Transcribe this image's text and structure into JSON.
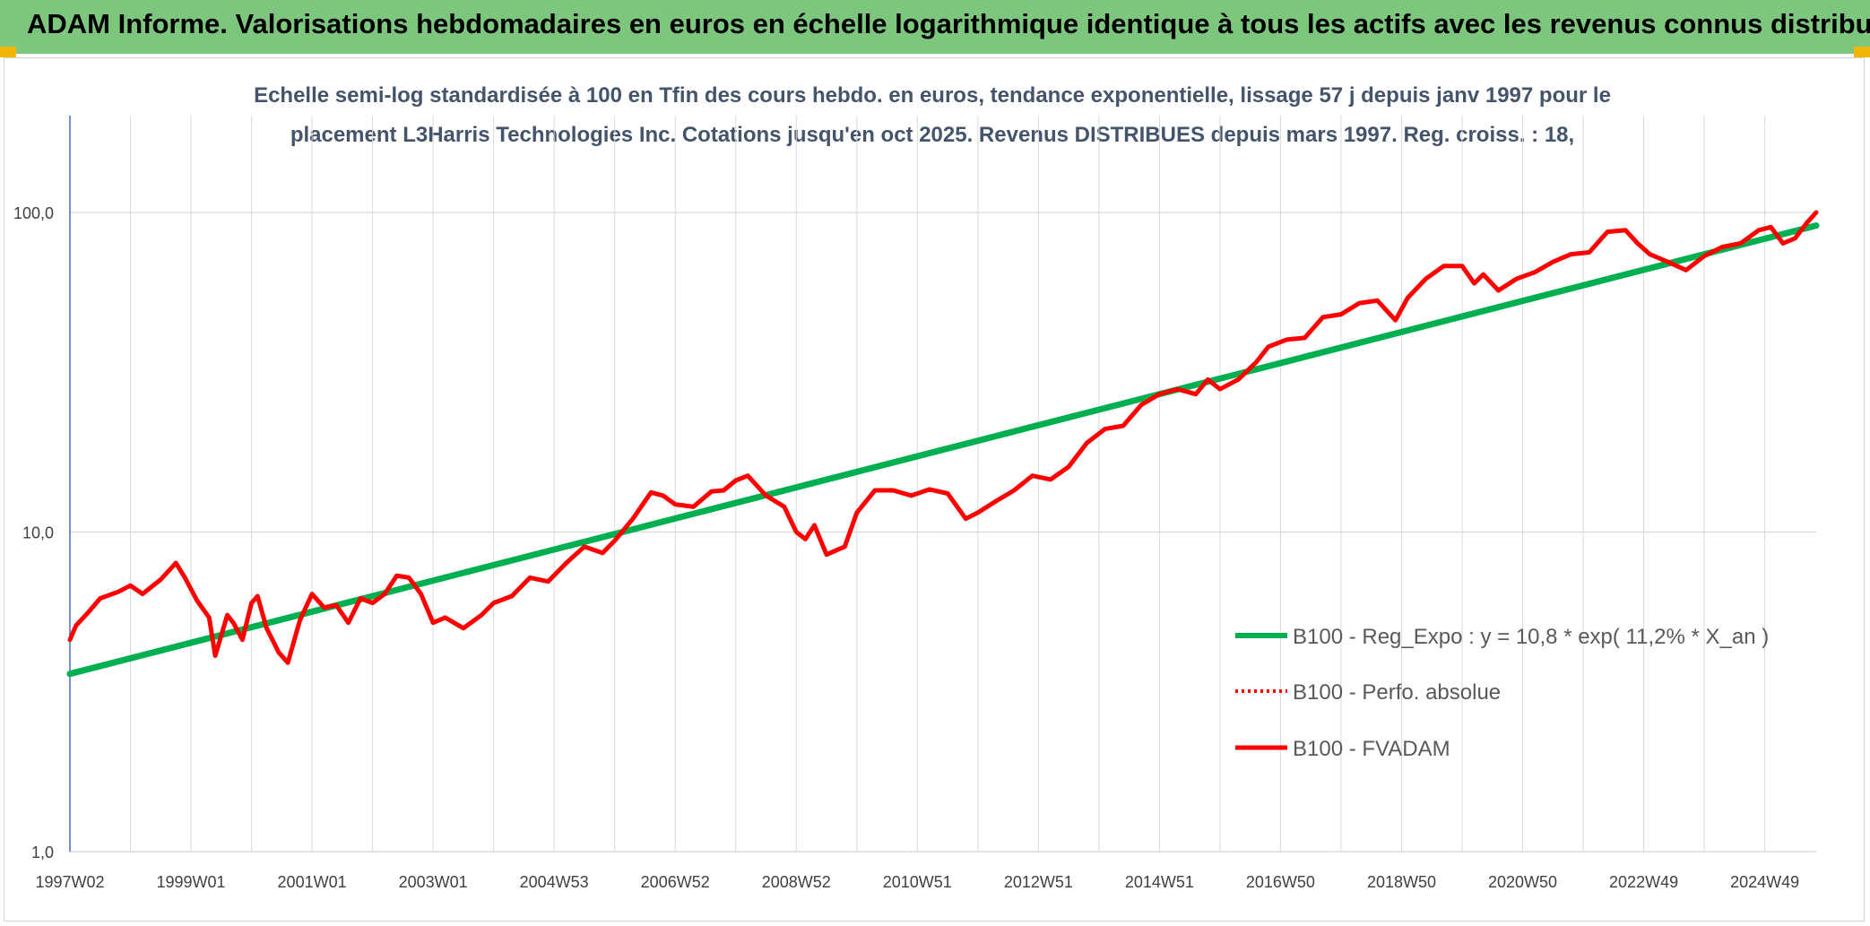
{
  "header": {
    "title": "ADAM Informe. Valorisations hebdomadaires en euros en échelle logarithmique identique à tous les actifs avec les revenus connus distribués"
  },
  "colors": {
    "banner": "#7dc67e",
    "regression": "#00b050",
    "fvadam": "#ff0000",
    "perfo": "#ff0000",
    "grid": "#d9d9d9",
    "axis": "#4472c4"
  },
  "chart_data": {
    "type": "line",
    "subtitle_lines": [
      "Echelle semi-log standardisée à 100 en Tfin des cours hebdo. en euros, tendance exponentielle, lissage 57 j depuis janv 1997 pour le",
      "placement L3Harris Technologies Inc. Cotations jusqu'en oct 2025. Revenus DISTRIBUES depuis mars 1997. Reg. croiss. : 18,"
    ],
    "y_scale": "log",
    "ylim": [
      1,
      100
    ],
    "y_ticks": [
      "1,0",
      "10,0",
      "100,0"
    ],
    "xlim": [
      1997.0,
      2025.85
    ],
    "x_ticks": [
      {
        "label": "1997W02",
        "x": 1997.0
      },
      {
        "label": "1999W01",
        "x": 1999.0
      },
      {
        "label": "2001W01",
        "x": 2001.0
      },
      {
        "label": "2003W01",
        "x": 2003.0
      },
      {
        "label": "2004W53",
        "x": 2005.0
      },
      {
        "label": "2006W52",
        "x": 2007.0
      },
      {
        "label": "2008W52",
        "x": 2009.0
      },
      {
        "label": "2010W51",
        "x": 2011.0
      },
      {
        "label": "2012W51",
        "x": 2013.0
      },
      {
        "label": "2014W51",
        "x": 2015.0
      },
      {
        "label": "2016W50",
        "x": 2017.0
      },
      {
        "label": "2018W50",
        "x": 2019.0
      },
      {
        "label": "2020W50",
        "x": 2021.0
      },
      {
        "label": "2022W49",
        "x": 2023.0
      },
      {
        "label": "2024W49",
        "x": 2025.0
      }
    ],
    "legend_position": "bottom-right",
    "series": [
      {
        "name": "B100 - Reg_Expo : y = 10,8 * exp( 11,2% *  X_an )",
        "style": "solid-thick",
        "color": "#00b050",
        "x": [
          1997.0,
          2025.85
        ],
        "y": [
          3.6,
          91.0
        ]
      },
      {
        "name": "B100 - Perfo. absolue",
        "style": "dotted",
        "color": "#ff0000",
        "x": [],
        "y": []
      },
      {
        "name": "B100 - FVADAM",
        "style": "solid",
        "color": "#ff0000",
        "x": [
          1997.0,
          1997.1,
          1997.3,
          1997.5,
          1997.8,
          1998.0,
          1998.2,
          1998.5,
          1998.75,
          1998.9,
          1999.1,
          1999.3,
          1999.4,
          1999.6,
          1999.7,
          1999.85,
          2000.0,
          2000.1,
          2000.25,
          2000.45,
          2000.6,
          2000.8,
          2001.0,
          2001.2,
          2001.4,
          2001.6,
          2001.8,
          2002.0,
          2002.2,
          2002.4,
          2002.6,
          2002.8,
          2003.0,
          2003.2,
          2003.5,
          2003.8,
          2004.0,
          2004.3,
          2004.6,
          2004.9,
          2005.2,
          2005.5,
          2005.8,
          2006.0,
          2006.3,
          2006.6,
          2006.8,
          2007.0,
          2007.3,
          2007.6,
          2007.8,
          2008.0,
          2008.2,
          2008.5,
          2008.8,
          2009.0,
          2009.15,
          2009.3,
          2009.5,
          2009.8,
          2010.0,
          2010.3,
          2010.6,
          2010.9,
          2011.2,
          2011.5,
          2011.8,
          2012.0,
          2012.3,
          2012.6,
          2012.9,
          2013.2,
          2013.5,
          2013.8,
          2014.1,
          2014.4,
          2014.7,
          2015.0,
          2015.3,
          2015.6,
          2015.8,
          2016.0,
          2016.3,
          2016.6,
          2016.8,
          2017.1,
          2017.4,
          2017.7,
          2018.0,
          2018.3,
          2018.6,
          2018.9,
          2019.1,
          2019.4,
          2019.7,
          2020.0,
          2020.2,
          2020.35,
          2020.6,
          2020.9,
          2021.2,
          2021.5,
          2021.8,
          2022.1,
          2022.4,
          2022.7,
          2022.9,
          2023.1,
          2023.4,
          2023.7,
          2024.0,
          2024.3,
          2024.6,
          2024.9,
          2025.1,
          2025.3,
          2025.5,
          2025.7,
          2025.85
        ],
        "y": [
          4.6,
          5.1,
          5.6,
          6.2,
          6.5,
          6.8,
          6.4,
          7.1,
          8.0,
          7.2,
          6.1,
          5.4,
          4.1,
          5.5,
          5.2,
          4.6,
          6.0,
          6.3,
          5.0,
          4.2,
          3.9,
          5.3,
          6.4,
          5.8,
          5.9,
          5.2,
          6.2,
          6.0,
          6.4,
          7.3,
          7.2,
          6.4,
          5.2,
          5.4,
          5.0,
          5.5,
          6.0,
          6.3,
          7.2,
          7.0,
          8.0,
          9.0,
          8.6,
          9.4,
          11.0,
          13.3,
          13.0,
          12.2,
          12.0,
          13.4,
          13.5,
          14.5,
          15.0,
          13.0,
          12.0,
          10.0,
          9.5,
          10.5,
          8.5,
          9.0,
          11.5,
          13.5,
          13.5,
          13.0,
          13.6,
          13.2,
          11.0,
          11.5,
          12.5,
          13.5,
          15.0,
          14.6,
          16.0,
          19.0,
          21.0,
          21.5,
          25.0,
          27.0,
          28.0,
          27.0,
          30.0,
          28.0,
          30.0,
          34.0,
          38.0,
          40.0,
          40.5,
          47.0,
          48.0,
          52.0,
          53.0,
          46.0,
          54.0,
          62.0,
          68.0,
          68.0,
          60.0,
          64.0,
          57.0,
          62.0,
          65.0,
          70.0,
          74.0,
          75.0,
          87.0,
          88.0,
          80.0,
          74.0,
          70.0,
          66.0,
          73.0,
          78.0,
          80.0,
          88.0,
          90.0,
          80.0,
          83.0,
          93.0,
          100.0
        ]
      }
    ]
  }
}
